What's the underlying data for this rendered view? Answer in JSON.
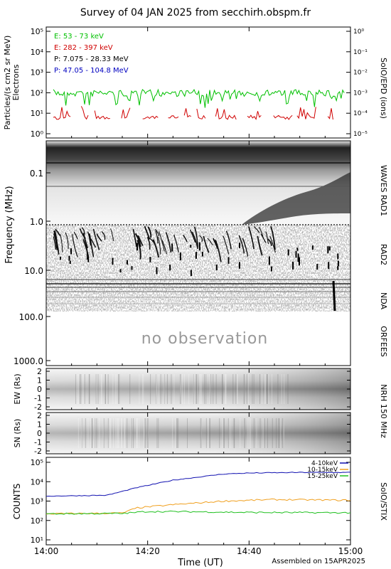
{
  "title": "Survey of 04 JAN 2025 from secchirh.obspm.fr",
  "footer": {
    "time_label": "Time (UT)",
    "assembled": "Assembled on 15APR2025"
  },
  "x_ticks": [
    "14:00",
    "14:20",
    "14:40",
    "15:00"
  ],
  "colors": {
    "green": "#00c000",
    "red": "#d00000",
    "black": "#000000",
    "blue": "#0000c0",
    "orange": "#f0a020",
    "stix_blue": "#1010b0",
    "stix_green": "#20c020"
  },
  "chart_data": [
    {
      "type": "line",
      "panel": "particles",
      "ylabel": [
        "Particles/(s cm2 sr MeV)",
        "Electrons"
      ],
      "right_label": "SoIO/EPD (ions)",
      "y_left_ticks": [
        "10⁵",
        "10⁴",
        "10³",
        "10²",
        "10¹",
        "10⁰"
      ],
      "y_right_ticks": [
        "10⁰",
        "10⁻¹",
        "10⁻²",
        "10⁻³",
        "10⁻⁴",
        "10⁻⁵"
      ],
      "ylim": [
        1,
        100000
      ],
      "legend": [
        {
          "label": "E: 53 - 73 keV",
          "color": "green"
        },
        {
          "label": "E: 282 - 397 keV",
          "color": "red"
        },
        {
          "label": "P: 7.075 - 28.33 MeV",
          "color": "black"
        },
        {
          "label": "P: 47.05 - 104.8 MeV",
          "color": "blue"
        }
      ],
      "series": [
        {
          "name": "E: 53 - 73 keV",
          "level": 100
        },
        {
          "name": "E: 282 - 397 keV",
          "level": 7
        }
      ]
    },
    {
      "type": "heatmap",
      "panel": "radio",
      "ylabel": "Frequency (MHz)",
      "y_ticks": [
        "0.1",
        "1.0",
        "10.0",
        "100.0",
        "1000.0"
      ],
      "right_labels": [
        "WAVES RAD1",
        "RAD2",
        "NDA",
        "ORFEES"
      ],
      "annotation": "no observation"
    },
    {
      "type": "heatmap",
      "panel": "nrh",
      "ylabel_ew": "EW (Rs)",
      "ylabel_sn": "SN (Rs)",
      "y_ticks": [
        "2",
        "1",
        "0",
        "-1",
        "-2"
      ],
      "right_label": "NRH 150 MHz"
    },
    {
      "type": "line",
      "panel": "stix",
      "ylabel": "COUNTS",
      "right_label": "SoIO/STIX",
      "y_ticks": [
        "10⁵",
        "10⁴",
        "10³",
        "10²",
        "10¹"
      ],
      "ylim": [
        10,
        100000
      ],
      "legend": [
        {
          "label": "4-10keV",
          "color": "stix_blue"
        },
        {
          "label": "10-15keV",
          "color": "orange"
        },
        {
          "label": "15-25keV",
          "color": "stix_green"
        }
      ],
      "series": [
        {
          "name": "4-10keV",
          "x": [
            "14:00",
            "14:12",
            "14:18",
            "14:25",
            "14:35",
            "14:40",
            "14:50",
            "15:00"
          ],
          "values": [
            1800,
            2000,
            5000,
            12000,
            25000,
            28000,
            30000,
            30000
          ]
        },
        {
          "name": "10-15keV",
          "x": [
            "14:00",
            "14:15",
            "14:18",
            "14:25",
            "14:35",
            "14:45",
            "15:00"
          ],
          "values": [
            220,
            240,
            450,
            650,
            1000,
            1200,
            1100
          ]
        },
        {
          "name": "15-25keV",
          "x": [
            "14:00",
            "14:15",
            "14:20",
            "14:30",
            "14:40",
            "15:00"
          ],
          "values": [
            220,
            230,
            290,
            280,
            260,
            250
          ]
        }
      ]
    }
  ]
}
